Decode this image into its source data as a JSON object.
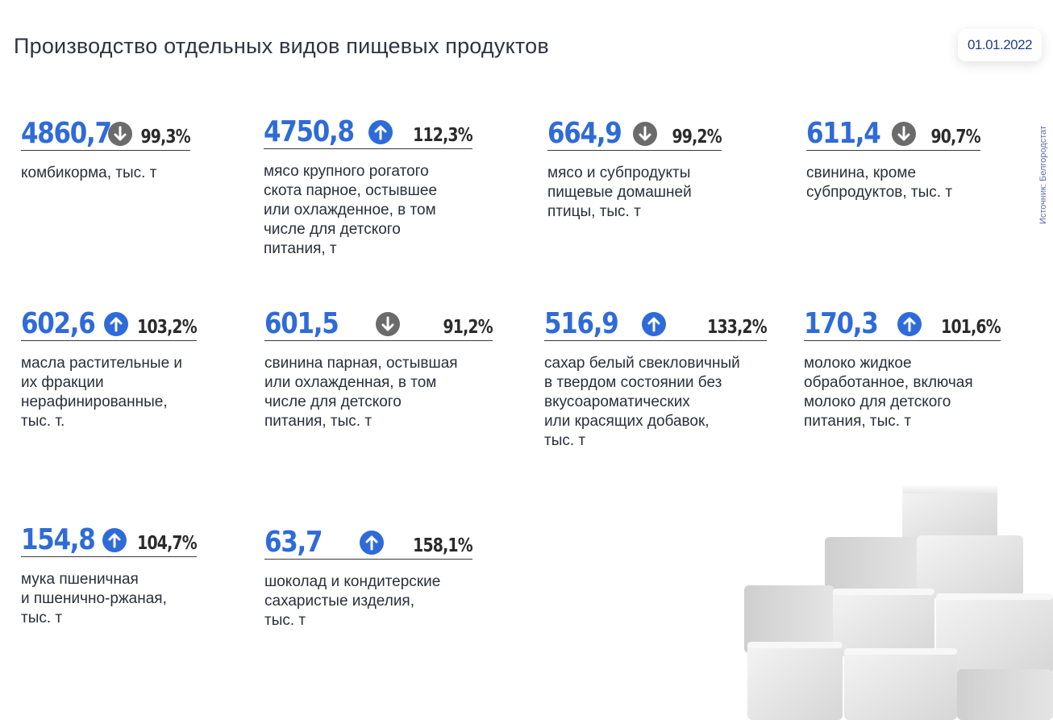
{
  "page": {
    "title": "Производство отдельных видов пищевых продуктов",
    "date": "01.01.2022",
    "source": "Источник: Белгородстат"
  },
  "colors": {
    "value": "#2f6bd8",
    "up": "#2f6bd8",
    "down": "#6b6b6b"
  },
  "items": [
    {
      "value": "4860,7",
      "trend": "down",
      "trend_icon": "arrow-down-circle-icon",
      "percent": "99,3%",
      "label": "комбикорма, тыс. т"
    },
    {
      "value": "4750,8",
      "trend": "up",
      "trend_icon": "arrow-up-circle-icon",
      "percent": "112,3%",
      "label": "мясо крупного рогатого\nскота парное, остывшее\nили охлажденное, в том\nчисле для детского\nпитания, т"
    },
    {
      "value": "664,9",
      "trend": "down",
      "trend_icon": "arrow-down-circle-icon",
      "percent": "99,2%",
      "label": "мясо и субпродукты\nпищевые домашней\nптицы, тыс. т"
    },
    {
      "value": "611,4",
      "trend": "down",
      "trend_icon": "arrow-down-circle-icon",
      "percent": "90,7%",
      "label": "свинина, кроме\nсубпродуктов, тыс. т"
    },
    {
      "value": "602,6",
      "trend": "up",
      "trend_icon": "arrow-up-circle-icon",
      "percent": "103,2%",
      "label": "масла растительные и\nих фракции\nнерафинированные,\nтыс. т."
    },
    {
      "value": "601,5",
      "trend": "down",
      "trend_icon": "arrow-down-circle-icon",
      "percent": "91,2%",
      "label": "свинина парная, остывшая\nили охлажденная, в том\nчисле для детского\nпитания, тыс. т"
    },
    {
      "value": "516,9",
      "trend": "up",
      "trend_icon": "arrow-up-circle-icon",
      "percent": "133,2%",
      "label": "сахар белый свекловичный\nв твердом состоянии без\nвкусоароматических\nили красящих добавок,\nтыс. т"
    },
    {
      "value": "170,3",
      "trend": "up",
      "trend_icon": "arrow-up-circle-icon",
      "percent": "101,6%",
      "label": "молоко жидкое\nобработанное, включая\nмолоко для детского\nпитания, тыс. т"
    },
    {
      "value": "154,8",
      "trend": "up",
      "trend_icon": "arrow-up-circle-icon",
      "percent": "104,7%",
      "label": "мука пшеничная\nи пшенично-ржаная,\nтыс. т"
    },
    {
      "value": "63,7",
      "trend": "up",
      "trend_icon": "arrow-up-circle-icon",
      "percent": "158,1%",
      "label": "шоколад и кондитерские\nсахаристые изделия,\nтыс. т"
    }
  ]
}
